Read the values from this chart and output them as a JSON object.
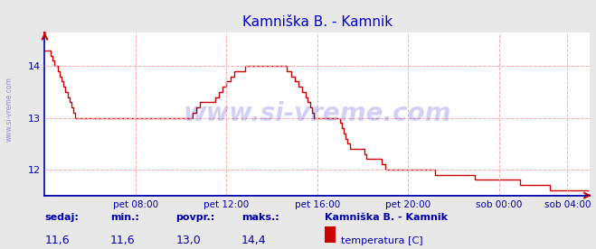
{
  "title": "Kamniška B. - Kamnik",
  "title_color": "#0000cc",
  "bg_color": "#e8e8e8",
  "plot_bg_color": "#ffffff",
  "grid_color": "#ffaaaa",
  "grid_linestyle": "--",
  "line_color": "#cc0000",
  "axis_color": "#0000aa",
  "watermark": "www.si-vreme.com",
  "watermark_color": "#0000cc",
  "watermark_alpha": 0.18,
  "side_label": "www.si-vreme.com",
  "side_label_color": "#4444cc",
  "side_label_alpha": 0.55,
  "ylim_bottom": 11.5,
  "ylim_top": 14.65,
  "yticks": [
    12,
    13,
    14
  ],
  "xtick_labels": [
    "pet 08:00",
    "pet 12:00",
    "pet 16:00",
    "pet 20:00",
    "sob 00:00",
    "sob 04:00"
  ],
  "xtick_positions": [
    48,
    96,
    144,
    192,
    240,
    276
  ],
  "footer_labels": [
    "sedaj:",
    "min.:",
    "povpr.:",
    "maks.:"
  ],
  "footer_values": [
    "11,6",
    "11,6",
    "13,0",
    "14,4"
  ],
  "footer_station": "Kamniška B. - Kamnik",
  "footer_series": "temperatura [C]",
  "legend_color": "#cc0000",
  "raw_data": [
    143,
    143,
    143,
    142,
    141,
    140,
    140,
    139,
    138,
    137,
    136,
    135,
    134,
    133,
    132,
    131,
    130,
    130,
    130,
    130,
    130,
    130,
    130,
    130,
    130,
    130,
    130,
    130,
    130,
    130,
    130,
    130,
    130,
    130,
    130,
    130,
    130,
    130,
    130,
    130,
    130,
    130,
    130,
    130,
    130,
    130,
    130,
    130,
    130,
    130,
    130,
    130,
    130,
    130,
    130,
    130,
    130,
    130,
    130,
    130,
    130,
    130,
    130,
    130,
    130,
    130,
    130,
    130,
    130,
    130,
    130,
    130,
    130,
    130,
    130,
    130,
    130,
    130,
    131,
    131,
    132,
    132,
    133,
    133,
    133,
    133,
    133,
    133,
    133,
    133,
    134,
    134,
    135,
    135,
    136,
    136,
    137,
    137,
    138,
    138,
    139,
    139,
    139,
    139,
    139,
    139,
    140,
    140,
    140,
    140,
    140,
    140,
    140,
    140,
    140,
    140,
    140,
    140,
    140,
    140,
    140,
    140,
    140,
    140,
    140,
    140,
    140,
    140,
    139,
    139,
    138,
    138,
    137,
    137,
    136,
    136,
    135,
    135,
    134,
    133,
    132,
    131,
    130,
    130,
    130,
    130,
    130,
    130,
    130,
    130,
    130,
    130,
    130,
    130,
    130,
    130,
    129,
    128,
    127,
    126,
    125,
    124,
    124,
    124,
    124,
    124,
    124,
    124,
    124,
    123,
    122,
    122,
    122,
    122,
    122,
    122,
    122,
    122,
    121,
    121,
    120,
    120,
    120,
    120,
    120,
    120,
    120,
    120,
    120,
    120,
    120,
    120,
    120,
    120,
    120,
    120,
    120,
    120,
    120,
    120,
    120,
    120,
    120,
    120,
    120,
    120,
    119,
    119,
    119,
    119,
    119,
    119,
    119,
    119,
    119,
    119,
    119,
    119,
    119,
    119,
    119,
    119,
    119,
    119,
    119,
    119,
    119,
    118,
    118,
    118,
    118,
    118,
    118,
    118,
    118,
    118,
    118,
    118,
    118,
    118,
    118,
    118,
    118,
    118,
    118,
    118,
    118,
    118,
    118,
    118,
    118,
    117,
    117,
    117,
    117,
    117,
    117,
    117,
    117,
    117,
    117,
    117,
    117,
    117,
    117,
    117,
    117,
    116,
    116,
    116,
    116,
    116,
    116,
    116,
    116,
    116,
    116,
    116,
    116,
    116,
    116,
    116,
    116,
    116,
    116,
    116,
    116,
    116
  ]
}
